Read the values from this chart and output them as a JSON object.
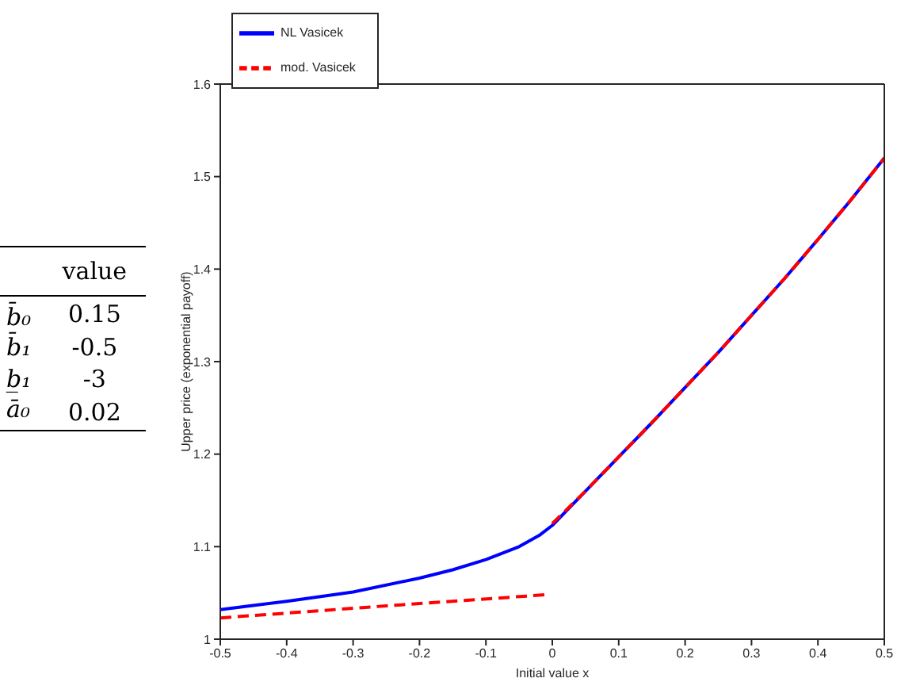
{
  "chart_data": {
    "type": "line",
    "xlabel": "Initial value x",
    "ylabel": "Upper price (exponential payoff)",
    "xlim": [
      -0.5,
      0.5
    ],
    "xticks": [
      -0.5,
      -0.4,
      -0.3,
      -0.2,
      -0.1,
      0,
      0.1,
      0.2,
      0.3,
      0.4,
      0.5
    ],
    "ylim": [
      1,
      1.6
    ],
    "yticks": [
      1,
      1.1,
      1.2,
      1.3,
      1.4,
      1.5,
      1.6
    ],
    "legend": "top left",
    "marker": "none",
    "annotations": [
      "value",
      "b̄₀",
      "0.15",
      "b̄₁",
      "-0.5",
      "b̲₁",
      "-3",
      "ā₀",
      "0.02"
    ],
    "series": [
      {
        "name": "NL Vasicek",
        "color": "#0000ff",
        "line_style": "solid",
        "x": [
          -0.5,
          -0.4,
          -0.3,
          -0.2,
          -0.15,
          -0.1,
          -0.05,
          -0.02,
          0,
          0.05,
          0.1,
          0.15,
          0.2,
          0.25,
          0.3,
          0.35,
          0.4,
          0.45,
          0.5
        ],
        "values": [
          1.032,
          1.041,
          1.051,
          1.066,
          1.075,
          1.086,
          1.1,
          1.112,
          1.123,
          1.16,
          1.197,
          1.234,
          1.272,
          1.31,
          1.35,
          1.39,
          1.432,
          1.475,
          1.52
        ]
      },
      {
        "name": "mod. Vasicek",
        "color": "#ff0000",
        "line_style": "dashed",
        "x": [
          -0.5,
          -0.25,
          -0.01,
          -0.005,
          0,
          0.05,
          0.1,
          0.15,
          0.2,
          0.25,
          0.3,
          0.35,
          0.4,
          0.45,
          0.5
        ],
        "values": [
          1.023,
          1.036,
          1.048,
          null,
          1.125,
          1.16,
          1.197,
          1.234,
          1.272,
          1.31,
          1.35,
          1.39,
          1.432,
          1.475,
          1.52
        ]
      }
    ]
  }
}
